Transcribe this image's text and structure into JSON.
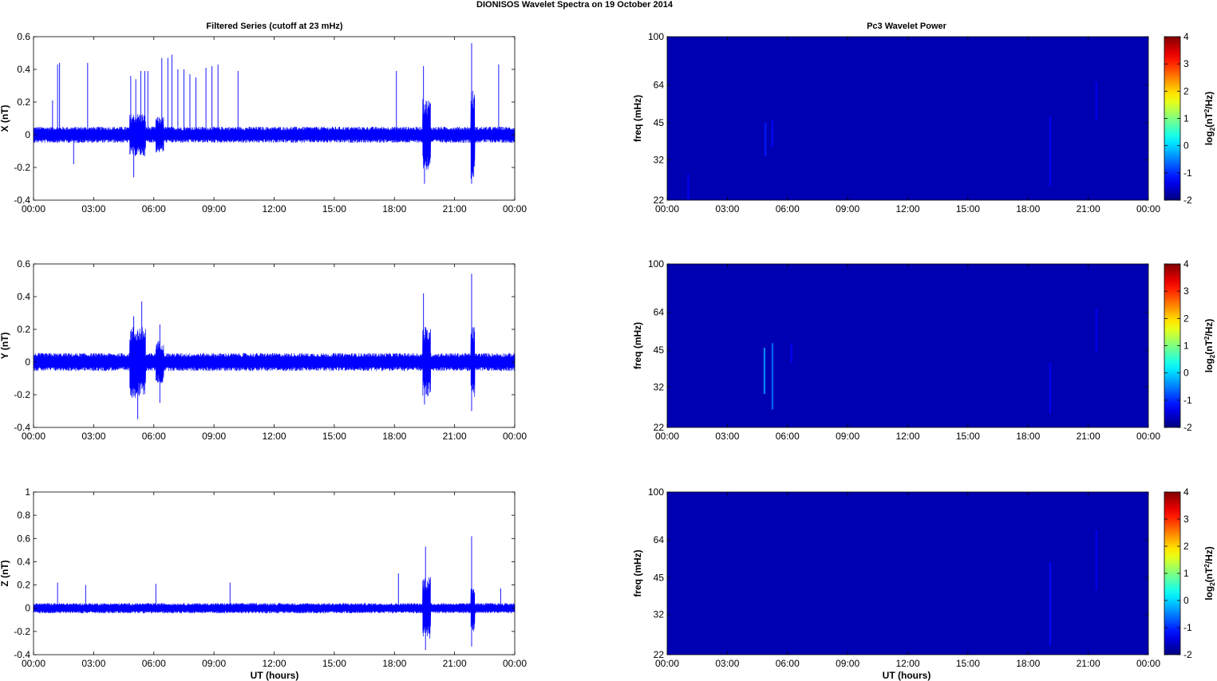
{
  "figure": {
    "title": "DIONISOS Wavelet Spectra on 19 October   2014",
    "left_column_title": "Filtered Series (cutoff at 23 mHz)",
    "right_column_title": "Pc3 Wavelet Power",
    "xlabel": "UT (hours)"
  },
  "chart_data": [
    {
      "type": "line",
      "component": "X",
      "ylabel": "X (nT)",
      "x_ticks": [
        "00:00",
        "03:00",
        "06:00",
        "09:00",
        "12:00",
        "15:00",
        "18:00",
        "21:00",
        "00:00"
      ],
      "x_range_hours": [
        0,
        24
      ],
      "ylim": [
        -0.4,
        0.6
      ],
      "y_ticks": [
        "-0.4",
        "-0.2",
        "0",
        "0.2",
        "0.4",
        "0.6"
      ],
      "series_color": "#0000ff",
      "noise_band": 0.045,
      "active_intervals": [
        {
          "start": 4.8,
          "end": 5.6,
          "amp": 0.12
        },
        {
          "start": 6.1,
          "end": 6.5,
          "amp": 0.1
        },
        {
          "start": 19.4,
          "end": 19.8,
          "amp": 0.2
        },
        {
          "start": 21.8,
          "end": 22.0,
          "amp": 0.25
        }
      ],
      "spikes": [
        {
          "t": 0.95,
          "v": 0.21
        },
        {
          "t": 1.2,
          "v": 0.43
        },
        {
          "t": 1.3,
          "v": 0.44
        },
        {
          "t": 2.7,
          "v": 0.44
        },
        {
          "t": 4.85,
          "v": 0.36
        },
        {
          "t": 5.1,
          "v": 0.34
        },
        {
          "t": 5.35,
          "v": 0.39
        },
        {
          "t": 5.55,
          "v": 0.39
        },
        {
          "t": 5.7,
          "v": 0.39
        },
        {
          "t": 6.4,
          "v": 0.47
        },
        {
          "t": 6.7,
          "v": 0.47
        },
        {
          "t": 6.9,
          "v": 0.49
        },
        {
          "t": 7.2,
          "v": 0.4
        },
        {
          "t": 7.5,
          "v": 0.4
        },
        {
          "t": 7.8,
          "v": 0.37
        },
        {
          "t": 8.1,
          "v": 0.35
        },
        {
          "t": 8.6,
          "v": 0.41
        },
        {
          "t": 8.9,
          "v": 0.42
        },
        {
          "t": 9.2,
          "v": 0.43
        },
        {
          "t": 10.2,
          "v": 0.39
        },
        {
          "t": 18.1,
          "v": 0.39
        },
        {
          "t": 19.45,
          "v": 0.42
        },
        {
          "t": 21.85,
          "v": 0.56
        },
        {
          "t": 23.2,
          "v": 0.43
        },
        {
          "t": 2.0,
          "v": -0.18
        },
        {
          "t": 5.0,
          "v": -0.26
        },
        {
          "t": 19.5,
          "v": -0.3
        },
        {
          "t": 21.85,
          "v": -0.3
        }
      ]
    },
    {
      "type": "line",
      "component": "Y",
      "ylabel": "Y (nT)",
      "x_ticks": [
        "00:00",
        "03:00",
        "06:00",
        "09:00",
        "12:00",
        "15:00",
        "18:00",
        "21:00",
        "00:00"
      ],
      "x_range_hours": [
        0,
        24
      ],
      "ylim": [
        -0.4,
        0.6
      ],
      "y_ticks": [
        "-0.4",
        "-0.2",
        "0",
        "0.2",
        "0.4",
        "0.6"
      ],
      "series_color": "#0000ff",
      "noise_band": 0.05,
      "active_intervals": [
        {
          "start": 4.8,
          "end": 5.6,
          "amp": 0.2
        },
        {
          "start": 6.1,
          "end": 6.5,
          "amp": 0.12
        },
        {
          "start": 19.4,
          "end": 19.8,
          "amp": 0.2
        },
        {
          "start": 21.8,
          "end": 22.0,
          "amp": 0.2
        }
      ],
      "spikes": [
        {
          "t": 5.0,
          "v": 0.28
        },
        {
          "t": 5.4,
          "v": 0.37
        },
        {
          "t": 6.3,
          "v": 0.23
        },
        {
          "t": 19.45,
          "v": 0.42
        },
        {
          "t": 21.85,
          "v": 0.54
        },
        {
          "t": 5.2,
          "v": -0.35
        },
        {
          "t": 6.3,
          "v": -0.25
        },
        {
          "t": 19.5,
          "v": -0.26
        },
        {
          "t": 21.85,
          "v": -0.3
        }
      ]
    },
    {
      "type": "line",
      "component": "Z",
      "ylabel": "Z (nT)",
      "x_ticks": [
        "00:00",
        "03:00",
        "06:00",
        "09:00",
        "12:00",
        "15:00",
        "18:00",
        "21:00",
        "00:00"
      ],
      "x_range_hours": [
        0,
        24
      ],
      "ylim": [
        -0.4,
        1.0
      ],
      "y_ticks": [
        "-0.4",
        "-0.2",
        "0",
        "0.2",
        "0.4",
        "0.6",
        "0.8",
        "1"
      ],
      "series_color": "#0000ff",
      "noise_band": 0.04,
      "active_intervals": [
        {
          "start": 19.4,
          "end": 19.8,
          "amp": 0.25
        },
        {
          "start": 21.8,
          "end": 22.0,
          "amp": 0.2
        }
      ],
      "spikes": [
        {
          "t": 1.2,
          "v": 0.22
        },
        {
          "t": 2.6,
          "v": 0.2
        },
        {
          "t": 6.1,
          "v": 0.21
        },
        {
          "t": 9.8,
          "v": 0.22
        },
        {
          "t": 18.2,
          "v": 0.3
        },
        {
          "t": 19.55,
          "v": 0.53
        },
        {
          "t": 21.85,
          "v": 0.62
        },
        {
          "t": 23.3,
          "v": 0.17
        },
        {
          "t": 19.55,
          "v": -0.36
        },
        {
          "t": 21.85,
          "v": -0.33
        }
      ]
    },
    {
      "type": "heatmap",
      "component": "X",
      "title": "Pc3 Wavelet Power",
      "ylabel": "freq (mHz)",
      "x_ticks": [
        "00:00",
        "03:00",
        "06:00",
        "09:00",
        "12:00",
        "15:00",
        "18:00",
        "21:00",
        "00:00"
      ],
      "x_range_hours": [
        0,
        24
      ],
      "y_scale": "log",
      "y_range_mhz": [
        22,
        100
      ],
      "y_ticks": [
        "22",
        "32",
        "45",
        "64",
        "100"
      ],
      "colorbar_label": "log2(nT^2/Hz)",
      "colorbar_ticks": [
        "-2",
        "-1",
        "0",
        "1",
        "2",
        "3",
        "4"
      ],
      "clim": [
        -2,
        4
      ],
      "background_value": -1.7,
      "features": [
        {
          "t": 1.05,
          "f_lo": 22,
          "f_hi": 28,
          "value": -1.3
        },
        {
          "t": 4.9,
          "f_lo": 33,
          "f_hi": 45,
          "value": -1.1
        },
        {
          "t": 5.25,
          "f_lo": 36,
          "f_hi": 46,
          "value": -1.2
        },
        {
          "t": 19.1,
          "f_lo": 25,
          "f_hi": 48,
          "value": -1.3
        },
        {
          "t": 21.4,
          "f_lo": 46,
          "f_hi": 66,
          "value": -1.3
        }
      ]
    },
    {
      "type": "heatmap",
      "component": "Y",
      "ylabel": "freq (mHz)",
      "x_ticks": [
        "00:00",
        "03:00",
        "06:00",
        "09:00",
        "12:00",
        "15:00",
        "18:00",
        "21:00",
        "00:00"
      ],
      "x_range_hours": [
        0,
        24
      ],
      "y_scale": "log",
      "y_range_mhz": [
        22,
        100
      ],
      "y_ticks": [
        "22",
        "32",
        "45",
        "64",
        "100"
      ],
      "colorbar_label": "log2(nT^2/Hz)",
      "colorbar_ticks": [
        "-2",
        "-1",
        "0",
        "1",
        "2",
        "3",
        "4"
      ],
      "clim": [
        -2,
        4
      ],
      "background_value": -1.7,
      "features": [
        {
          "t": 4.85,
          "f_lo": 30,
          "f_hi": 46,
          "value": -0.4
        },
        {
          "t": 5.25,
          "f_lo": 26,
          "f_hi": 48,
          "value": -0.6
        },
        {
          "t": 6.2,
          "f_lo": 40,
          "f_hi": 48,
          "value": -1.3
        },
        {
          "t": 19.1,
          "f_lo": 25,
          "f_hi": 40,
          "value": -1.3
        },
        {
          "t": 21.4,
          "f_lo": 44,
          "f_hi": 66,
          "value": -1.3
        }
      ]
    },
    {
      "type": "heatmap",
      "component": "Z",
      "ylabel": "freq (mHz)",
      "x_ticks": [
        "00:00",
        "03:00",
        "06:00",
        "09:00",
        "12:00",
        "15:00",
        "18:00",
        "21:00",
        "00:00"
      ],
      "x_range_hours": [
        0,
        24
      ],
      "y_scale": "log",
      "y_range_mhz": [
        22,
        100
      ],
      "y_ticks": [
        "22",
        "32",
        "45",
        "64",
        "100"
      ],
      "colorbar_label": "log2(nT^2/Hz)",
      "colorbar_ticks": [
        "-2",
        "-1",
        "0",
        "1",
        "2",
        "3",
        "4"
      ],
      "clim": [
        -2,
        4
      ],
      "background_value": -1.7,
      "features": [
        {
          "t": 19.1,
          "f_lo": 24,
          "f_hi": 52,
          "value": -1.2
        },
        {
          "t": 21.4,
          "f_lo": 40,
          "f_hi": 70,
          "value": -1.3
        }
      ]
    }
  ]
}
